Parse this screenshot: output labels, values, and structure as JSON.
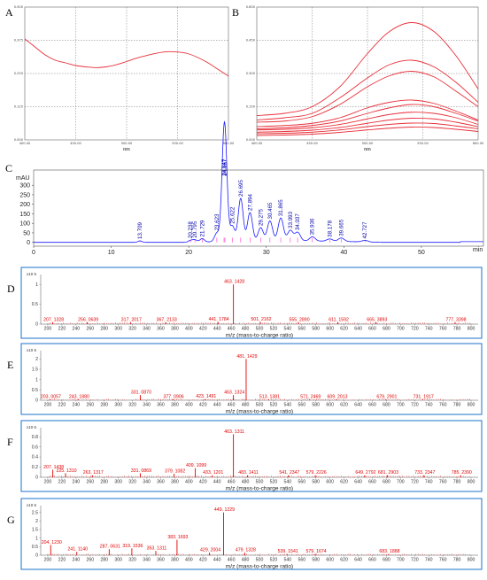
{
  "chart_data": [
    {
      "id": "A",
      "type": "line",
      "panel_label": "A",
      "xlabel": "nm",
      "x_ticks": [
        "400.00",
        "450.00",
        "500.00",
        "550.00",
        "600.00"
      ],
      "y_ticks": [
        "0.000",
        "0.125",
        "0.250",
        "0.375",
        "0.500"
      ],
      "xlim": [
        400,
        600
      ],
      "ylim": [
        0,
        0.5
      ],
      "grid": true,
      "color": "#e8303a",
      "series": [
        {
          "x": [
            400,
            410,
            420,
            430,
            440,
            450,
            460,
            470,
            480,
            490,
            500,
            510,
            520,
            530,
            540,
            550,
            560,
            570,
            580,
            590,
            600
          ],
          "y": [
            0.38,
            0.35,
            0.32,
            0.3,
            0.29,
            0.28,
            0.275,
            0.272,
            0.275,
            0.283,
            0.295,
            0.308,
            0.318,
            0.327,
            0.332,
            0.331,
            0.325,
            0.31,
            0.29,
            0.265,
            0.24
          ]
        }
      ]
    },
    {
      "id": "B",
      "type": "line",
      "panel_label": "B",
      "xlabel": "nm",
      "x_ticks": [
        "400.00",
        "450.00",
        "500.00",
        "550.00",
        "600.00"
      ],
      "y_ticks": [
        "0.000",
        "0.150",
        "0.300",
        "0.450",
        "0.600"
      ],
      "xlim": [
        400,
        600
      ],
      "ylim": [
        0,
        0.6
      ],
      "grid": true,
      "color": "#e8303a",
      "series": [
        {
          "x": [
            400,
            425,
            450,
            475,
            500,
            520,
            540,
            560,
            580,
            600
          ],
          "y": [
            0.11,
            0.12,
            0.15,
            0.24,
            0.39,
            0.49,
            0.53,
            0.49,
            0.38,
            0.23
          ]
        },
        {
          "x": [
            400,
            425,
            450,
            475,
            500,
            520,
            540,
            560,
            580,
            600
          ],
          "y": [
            0.09,
            0.1,
            0.12,
            0.19,
            0.28,
            0.34,
            0.36,
            0.33,
            0.26,
            0.17
          ]
        },
        {
          "x": [
            400,
            425,
            450,
            475,
            500,
            520,
            540,
            560,
            580,
            600
          ],
          "y": [
            0.08,
            0.085,
            0.105,
            0.16,
            0.24,
            0.29,
            0.31,
            0.285,
            0.22,
            0.15
          ]
        },
        {
          "x": [
            400,
            425,
            450,
            475,
            500,
            520,
            540,
            560,
            580,
            600
          ],
          "y": [
            0.06,
            0.065,
            0.075,
            0.1,
            0.145,
            0.17,
            0.18,
            0.165,
            0.13,
            0.09
          ]
        },
        {
          "x": [
            400,
            425,
            450,
            475,
            500,
            520,
            540,
            560,
            580,
            600
          ],
          "y": [
            0.05,
            0.055,
            0.065,
            0.085,
            0.12,
            0.145,
            0.16,
            0.15,
            0.12,
            0.085
          ]
        },
        {
          "x": [
            400,
            425,
            450,
            475,
            500,
            520,
            540,
            560,
            580,
            600
          ],
          "y": [
            0.045,
            0.048,
            0.055,
            0.07,
            0.095,
            0.115,
            0.125,
            0.12,
            0.1,
            0.07
          ]
        },
        {
          "x": [
            400,
            425,
            450,
            475,
            500,
            520,
            540,
            560,
            580,
            600
          ],
          "y": [
            0.035,
            0.038,
            0.044,
            0.056,
            0.075,
            0.09,
            0.098,
            0.095,
            0.08,
            0.06
          ]
        },
        {
          "x": [
            400,
            425,
            450,
            475,
            500,
            520,
            540,
            560,
            580,
            600
          ],
          "y": [
            0.028,
            0.03,
            0.035,
            0.045,
            0.06,
            0.07,
            0.076,
            0.074,
            0.063,
            0.05
          ]
        },
        {
          "x": [
            400,
            425,
            450,
            475,
            500,
            520,
            540,
            560,
            580,
            600
          ],
          "y": [
            0.02,
            0.022,
            0.026,
            0.034,
            0.045,
            0.053,
            0.058,
            0.056,
            0.048,
            0.038
          ]
        }
      ]
    },
    {
      "id": "C",
      "type": "line",
      "panel_label": "C",
      "ylabel": "mAU",
      "xlabel": "min",
      "x_ticks": [
        "0",
        "10",
        "20",
        "30",
        "40",
        "50"
      ],
      "y_ticks": [
        "0",
        "50",
        "100",
        "150",
        "200",
        "250",
        "300"
      ],
      "xlim": [
        0,
        58
      ],
      "ylim": [
        -20,
        380
      ],
      "line_color": "#1a1aff",
      "marker_color": "#ff33cc",
      "peaks": [
        {
          "rt": 13.709,
          "label": "13.709",
          "height": 8
        },
        {
          "rt": 20.238,
          "label": "20.238",
          "height": 10
        },
        {
          "rt": 20.795,
          "label": "20.795",
          "height": 12
        },
        {
          "rt": 21.729,
          "label": "21.729",
          "height": 18
        },
        {
          "rt": 23.623,
          "label": "23.623",
          "height": 45
        },
        {
          "rt": 24.547,
          "label": "24.547",
          "height": 330
        },
        {
          "rt": 24.667,
          "label": "24.667",
          "height": 310
        },
        {
          "rt": 25.622,
          "label": "25.622",
          "height": 80
        },
        {
          "rt": 26.695,
          "label": "26.695",
          "height": 225
        },
        {
          "rt": 27.894,
          "label": "27.894",
          "height": 150
        },
        {
          "rt": 29.275,
          "label": "29.275",
          "height": 70
        },
        {
          "rt": 30.465,
          "label": "30.465",
          "height": 105
        },
        {
          "rt": 31.865,
          "label": "31.865",
          "height": 120
        },
        {
          "rt": 33.093,
          "label": "33.093",
          "height": 55
        },
        {
          "rt": 34.037,
          "label": "34.037",
          "height": 45
        },
        {
          "rt": 35.936,
          "label": "35.936",
          "height": 22
        },
        {
          "rt": 38.178,
          "label": "38.178",
          "height": 12
        },
        {
          "rt": 39.665,
          "label": "39.665",
          "height": 18
        },
        {
          "rt": 42.727,
          "label": "42.727",
          "height": 8
        }
      ]
    },
    {
      "id": "D",
      "type": "bar",
      "panel_label": "D",
      "scale_label": "x10 5",
      "y_ticks": [
        "0",
        "0.5",
        "1"
      ],
      "ylim": [
        0,
        1.25
      ],
      "xlim": [
        190,
        810
      ],
      "x_ticks": [
        "200",
        "220",
        "240",
        "260",
        "280",
        "300",
        "320",
        "340",
        "360",
        "380",
        "400",
        "420",
        "440",
        "460",
        "480",
        "500",
        "520",
        "540",
        "560",
        "580",
        "600",
        "620",
        "640",
        "660",
        "680",
        "700",
        "720",
        "740",
        "760",
        "780",
        "800"
      ],
      "xlabel": "m/z (mass-to-charge ratio)",
      "peaks": [
        {
          "mz": 207.1328,
          "label": "207. 1328",
          "int": 0.05
        },
        {
          "mz": 256.0639,
          "label": "256. 0639",
          "int": 0.05
        },
        {
          "mz": 317.2017,
          "label": "317. 2017",
          "int": 0.05
        },
        {
          "mz": 367.2133,
          "label": "367. 2133",
          "int": 0.05
        },
        {
          "mz": 441.1784,
          "label": "441. 1784",
          "int": 0.06
        },
        {
          "mz": 463.1428,
          "label": "463. 1428",
          "int": 1.0
        },
        {
          "mz": 501.2162,
          "label": "501. 2162",
          "int": 0.06
        },
        {
          "mz": 555.289,
          "label": "555. 2890",
          "int": 0.05
        },
        {
          "mz": 611.1592,
          "label": "611. 1592",
          "int": 0.05
        },
        {
          "mz": 665.3893,
          "label": "665. 3893",
          "int": 0.05
        },
        {
          "mz": 777.3398,
          "label": "777. 3398",
          "int": 0.05
        }
      ]
    },
    {
      "id": "E",
      "type": "bar",
      "panel_label": "E",
      "scale_label": "x10 6",
      "y_ticks": [
        "0",
        "0.5",
        "1",
        "1.5",
        "2"
      ],
      "ylim": [
        0,
        2.4
      ],
      "xlim": [
        190,
        810
      ],
      "x_ticks": [
        "200",
        "220",
        "240",
        "260",
        "280",
        "300",
        "320",
        "340",
        "360",
        "380",
        "400",
        "420",
        "440",
        "460",
        "480",
        "500",
        "520",
        "540",
        "560",
        "580",
        "600",
        "620",
        "640",
        "660",
        "680",
        "700",
        "720",
        "740",
        "760",
        "780",
        "800"
      ],
      "xlabel": "m/z (mass-to-charge ratio)",
      "peaks": [
        {
          "mz": 203.0057,
          "label": "203. 0057",
          "int": 0.05
        },
        {
          "mz": 243.188,
          "label": "243. 1880",
          "int": 0.05
        },
        {
          "mz": 331.087,
          "label": "331. 0870",
          "int": 0.25
        },
        {
          "mz": 377.0906,
          "label": "377. 0906",
          "int": 0.05
        },
        {
          "mz": 423.1491,
          "label": "423. 1491",
          "int": 0.06
        },
        {
          "mz": 463.1324,
          "label": "463. 1324",
          "int": 0.25
        },
        {
          "mz": 481.1429,
          "label": "481. 1429",
          "int": 2.0
        },
        {
          "mz": 513.1381,
          "label": "513. 1381",
          "int": 0.05
        },
        {
          "mz": 571.2469,
          "label": "571. 2469",
          "int": 0.05
        },
        {
          "mz": 609.2013,
          "label": "609. 2013",
          "int": 0.05
        },
        {
          "mz": 679.2901,
          "label": "679. 2901",
          "int": 0.05
        },
        {
          "mz": 731.1917,
          "label": "731. 1917",
          "int": 0.05
        }
      ]
    },
    {
      "id": "F",
      "type": "bar",
      "panel_label": "F",
      "scale_label": "x10 6",
      "y_ticks": [
        "0",
        "0.2",
        "0.4",
        "0.6",
        "0.8"
      ],
      "ylim": [
        0,
        0.98
      ],
      "xlim": [
        190,
        810
      ],
      "x_ticks": [
        "200",
        "220",
        "240",
        "260",
        "280",
        "300",
        "320",
        "340",
        "360",
        "380",
        "400",
        "420",
        "440",
        "460",
        "480",
        "500",
        "520",
        "540",
        "560",
        "580",
        "600",
        "620",
        "640",
        "660",
        "680",
        "700",
        "720",
        "740",
        "760",
        "780",
        "800"
      ],
      "xlabel": "m/z (mass-to-charge ratio)",
      "peaks": [
        {
          "mz": 207.1438,
          "label": "207. 1438",
          "int": 0.15
        },
        {
          "mz": 225.131,
          "label": "225. 1310",
          "int": 0.08
        },
        {
          "mz": 263.1317,
          "label": "263. 1317",
          "int": 0.04
        },
        {
          "mz": 331.0869,
          "label": "331. 0869",
          "int": 0.08
        },
        {
          "mz": 379.1082,
          "label": "379. 1082",
          "int": 0.07
        },
        {
          "mz": 409.1099,
          "label": "409. 1099",
          "int": 0.18
        },
        {
          "mz": 433.1201,
          "label": "433. 1201",
          "int": 0.04
        },
        {
          "mz": 463.1311,
          "label": "463. 1311",
          "int": 0.85
        },
        {
          "mz": 483.1411,
          "label": "483. 1411",
          "int": 0.04
        },
        {
          "mz": 541.2347,
          "label": "541. 2347",
          "int": 0.04
        },
        {
          "mz": 579.2226,
          "label": "579. 2226",
          "int": 0.04
        },
        {
          "mz": 649.2792,
          "label": "649. 2792",
          "int": 0.04
        },
        {
          "mz": 681.2903,
          "label": "681. 2903",
          "int": 0.04
        },
        {
          "mz": 733.2347,
          "label": "733. 2347",
          "int": 0.04
        },
        {
          "mz": 785.239,
          "label": "785. 2390",
          "int": 0.04
        }
      ]
    },
    {
      "id": "G",
      "type": "bar",
      "panel_label": "G",
      "scale_label": "x10 6",
      "y_ticks": [
        "0",
        "0.5",
        "1",
        "1.5",
        "2",
        "2.5"
      ],
      "ylim": [
        0,
        2.9
      ],
      "xlim": [
        190,
        810
      ],
      "x_ticks": [
        "200",
        "220",
        "240",
        "260",
        "280",
        "300",
        "320",
        "340",
        "360",
        "380",
        "400",
        "420",
        "440",
        "460",
        "480",
        "500",
        "520",
        "540",
        "560",
        "580",
        "600",
        "620",
        "640",
        "660",
        "680",
        "700",
        "720",
        "740",
        "760",
        "780",
        "800"
      ],
      "xlabel": "m/z (mass-to-charge ratio)",
      "peaks": [
        {
          "mz": 204.123,
          "label": "204. 1230",
          "int": 0.6
        },
        {
          "mz": 241.114,
          "label": "241. 1140",
          "int": 0.2
        },
        {
          "mz": 287.0631,
          "label": "287. 0631",
          "int": 0.35
        },
        {
          "mz": 319.1536,
          "label": "319. 1536",
          "int": 0.4
        },
        {
          "mz": 353.1311,
          "label": "353. 1311",
          "int": 0.25
        },
        {
          "mz": 383.1693,
          "label": "383. 1693",
          "int": 0.9
        },
        {
          "mz": 429.2004,
          "label": "429. 2004",
          "int": 0.15
        },
        {
          "mz": 449.1229,
          "label": "449. 1229",
          "int": 2.5
        },
        {
          "mz": 479.1328,
          "label": "479. 1328",
          "int": 0.15
        },
        {
          "mz": 539.1541,
          "label": "539. 1541",
          "int": 0.08
        },
        {
          "mz": 579.1674,
          "label": "579. 1674",
          "int": 0.08
        },
        {
          "mz": 683.1888,
          "label": "683. 1888",
          "int": 0.08
        }
      ]
    }
  ]
}
